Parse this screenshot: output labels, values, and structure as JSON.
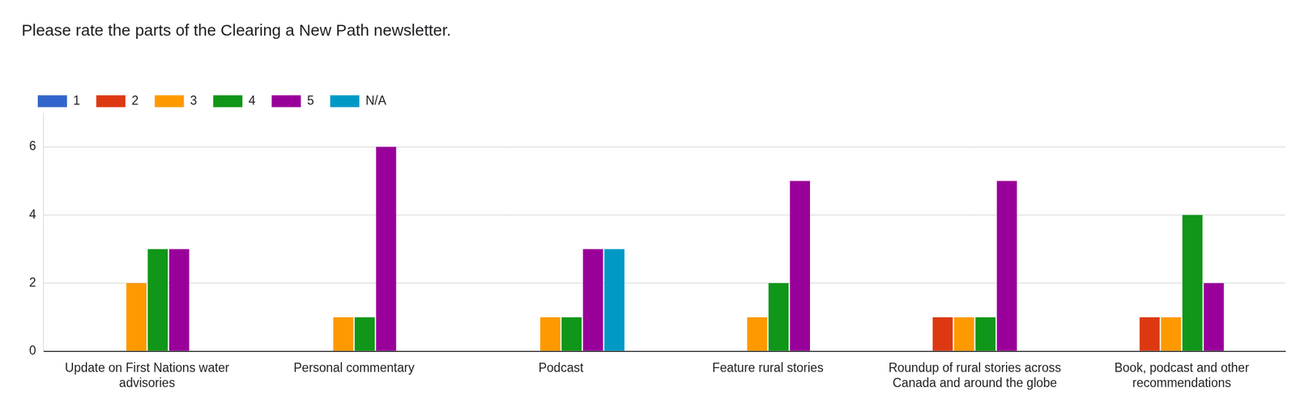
{
  "chart_data": {
    "type": "bar",
    "title": "Please rate the parts of the Clearing a New Path newsletter.",
    "categories": [
      "Update on First Nations water advisories",
      "Personal commentary",
      "Podcast",
      "Feature rural stories",
      "Roundup of rural stories across Canada and around the globe",
      "Book, podcast and other recommendations"
    ],
    "series": [
      {
        "name": "1",
        "color": "#3366cc",
        "values": [
          0,
          0,
          0,
          0,
          0,
          0
        ]
      },
      {
        "name": "2",
        "color": "#dc3912",
        "values": [
          0,
          0,
          0,
          0,
          1,
          1
        ]
      },
      {
        "name": "3",
        "color": "#ff9900",
        "values": [
          2,
          1,
          1,
          1,
          1,
          1
        ]
      },
      {
        "name": "4",
        "color": "#109618",
        "values": [
          3,
          1,
          1,
          2,
          1,
          4
        ]
      },
      {
        "name": "5",
        "color": "#990099",
        "values": [
          3,
          6,
          3,
          5,
          5,
          2
        ]
      },
      {
        "name": "N/A",
        "color": "#0099c6",
        "values": [
          0,
          0,
          3,
          0,
          0,
          0
        ]
      }
    ],
    "ylim": [
      0,
      7
    ],
    "yticks": [
      0,
      2,
      4,
      6
    ],
    "grid": true,
    "legend": "top-left"
  }
}
